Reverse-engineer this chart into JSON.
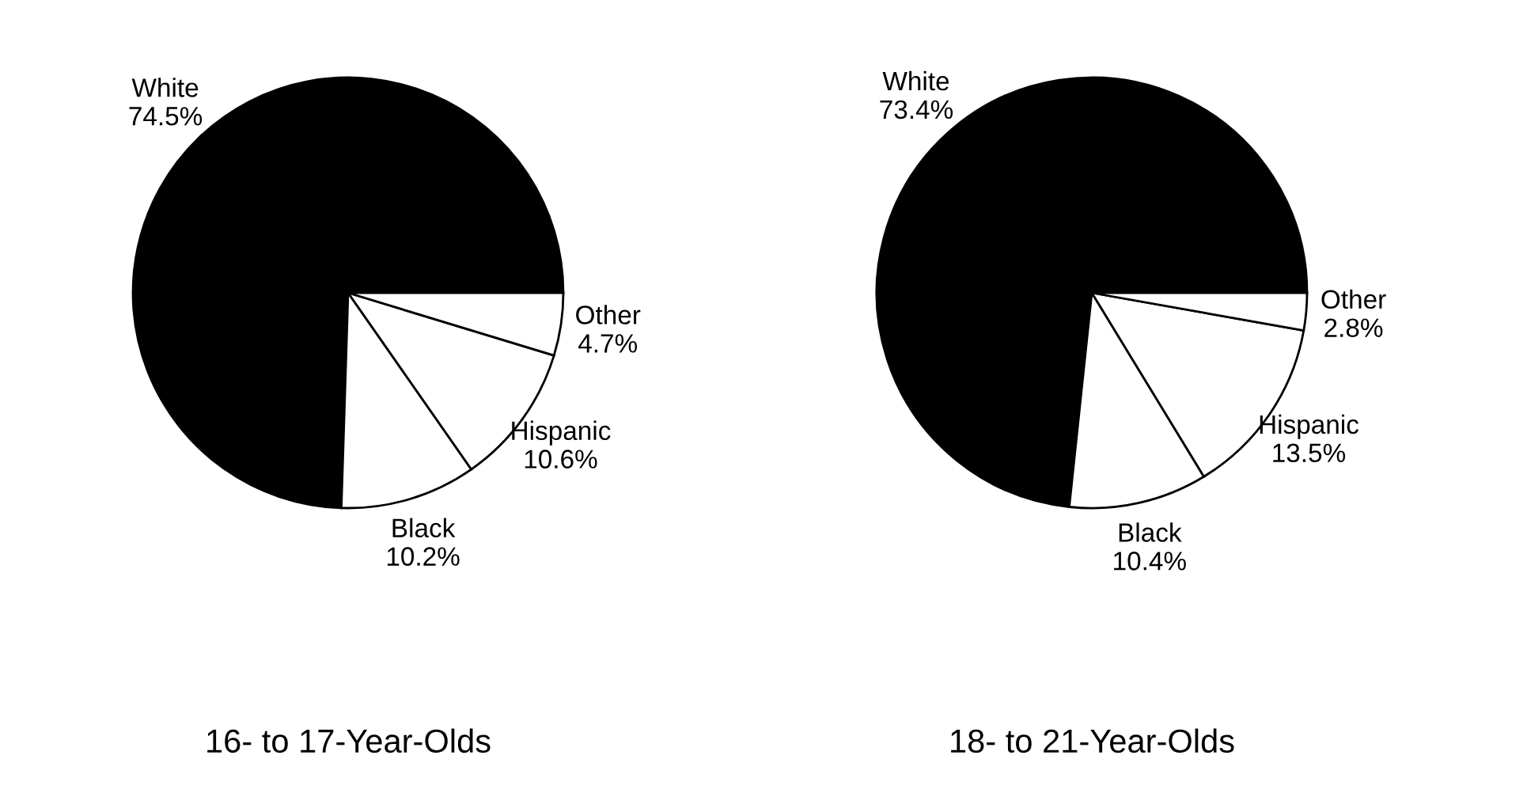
{
  "chart_data": [
    {
      "type": "pie",
      "title": "16- to 17-Year-Olds",
      "categories": [
        "White",
        "Black",
        "Hispanic",
        "Other"
      ],
      "values": [
        74.5,
        10.2,
        10.6,
        4.7
      ],
      "value_labels": [
        "74.5%",
        "10.2%",
        "10.6%",
        "4.7%"
      ],
      "colors": [
        "#000000",
        "#ffffff",
        "#ffffff",
        "#ffffff"
      ]
    },
    {
      "type": "pie",
      "title": "18- to 21-Year-Olds",
      "categories": [
        "White",
        "Black",
        "Hispanic",
        "Other"
      ],
      "values": [
        73.4,
        10.4,
        13.5,
        2.8
      ],
      "value_labels": [
        "73.4%",
        "10.4%",
        "13.5%",
        "2.8%"
      ],
      "colors": [
        "#000000",
        "#ffffff",
        "#ffffff",
        "#ffffff"
      ]
    }
  ]
}
